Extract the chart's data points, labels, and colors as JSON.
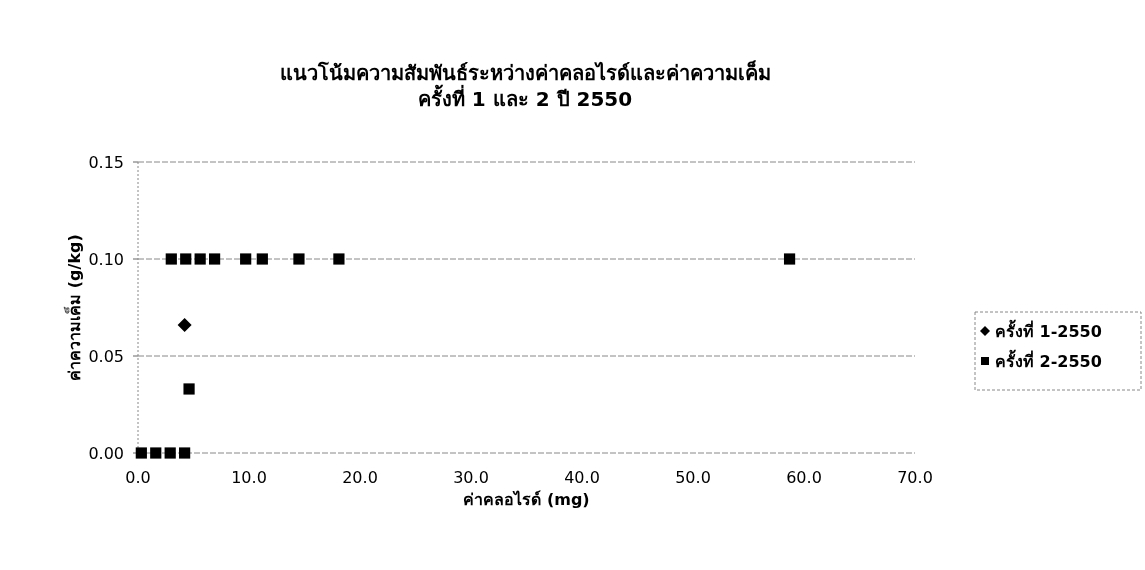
{
  "chart_data": {
    "type": "scatter",
    "title": "แนวโน้มความสัมพันธ์ระหว่างค่าคลอไรด์และค่าความเค็ม\nครั้งที่ 1 และ 2 ปี 2550",
    "xlabel": "ค่าคลอไรด์ (mg)",
    "ylabel": "ค่าความเค็ม (g/kg)",
    "xlim": [
      0,
      70
    ],
    "ylim": [
      0,
      0.15
    ],
    "xticks": [
      {
        "value": 0,
        "label": "0.0"
      },
      {
        "value": 10,
        "label": "10.0"
      },
      {
        "value": 20,
        "label": "20.0"
      },
      {
        "value": 30,
        "label": "30.0"
      },
      {
        "value": 40,
        "label": "40.0"
      },
      {
        "value": 50,
        "label": "50.0"
      },
      {
        "value": 60,
        "label": "60.0"
      },
      {
        "value": 70,
        "label": "70.0"
      }
    ],
    "yticks": [
      {
        "value": 0,
        "label": "0.00"
      },
      {
        "value": 0.05,
        "label": "0.05"
      },
      {
        "value": 0.1,
        "label": "0.10"
      },
      {
        "value": 0.15,
        "label": "0.15"
      }
    ],
    "grid": "y",
    "legend": "right",
    "series": [
      {
        "name": "ครั้งที่ 1-2550",
        "color": "#000000",
        "marker": "diamond",
        "x": [
          4.2
        ],
        "values": [
          0.066
        ]
      },
      {
        "name": "ครั้งที่ 2-2550",
        "color": "#000000",
        "marker": "square",
        "x": [
          0.3,
          1.6,
          2.9,
          4.2,
          4.6,
          3.0,
          4.3,
          5.6,
          6.9,
          9.7,
          11.2,
          14.5,
          18.1,
          58.7
        ],
        "values": [
          0,
          0,
          0,
          0,
          0.033,
          0.1,
          0.1,
          0.1,
          0.1,
          0.1,
          0.1,
          0.1,
          0.1,
          0.1
        ]
      }
    ]
  }
}
